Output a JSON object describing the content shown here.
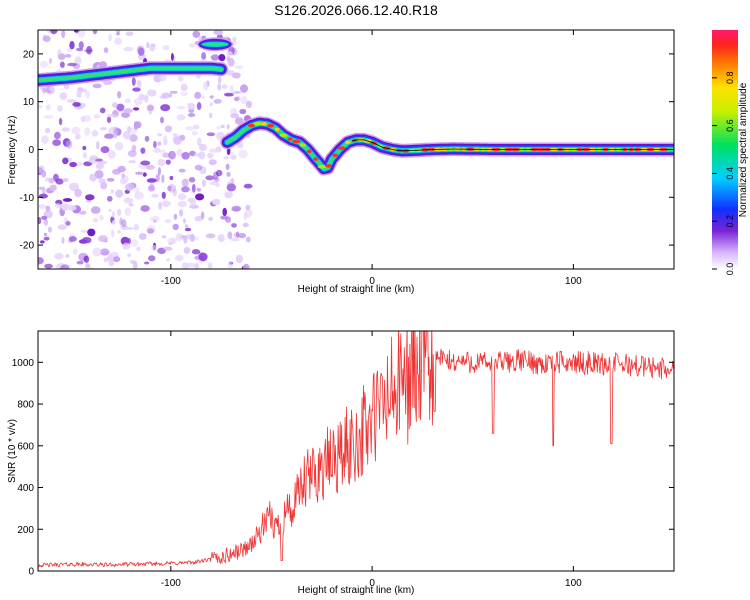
{
  "title": "S126.2026.066.12.40.R18",
  "chart_data": [
    {
      "type": "heatmap",
      "xlabel": "Height of straight line (km)",
      "ylabel": "Frequency (Hz)",
      "xlim": [
        -166,
        150
      ],
      "ylim": [
        -25,
        25
      ],
      "xticks": [
        -100,
        0,
        100
      ],
      "yticks": [
        -20,
        -10,
        0,
        10,
        20
      ],
      "colorbar": {
        "label": "Normalized spectral amplitude",
        "range": [
          0,
          1
        ],
        "ticks": [
          0.0,
          0.2,
          0.4,
          0.6,
          0.8
        ]
      },
      "ridge": {
        "x": [
          -166,
          -150,
          -140,
          -130,
          -120,
          -110,
          -100,
          -90,
          -80,
          -75,
          -72,
          -68,
          -64,
          -60,
          -56,
          -52,
          -48,
          -44,
          -40,
          -36,
          -32,
          -28,
          -24,
          -22,
          -20,
          -16,
          -12,
          -8,
          -4,
          0,
          5,
          10,
          15,
          20,
          30,
          40,
          60,
          80,
          100,
          120,
          140,
          150
        ],
        "y": [
          14.5,
          15,
          15.5,
          16,
          16.5,
          17,
          17,
          17,
          17,
          16.8,
          1.5,
          2.5,
          4,
          5,
          5.5,
          5.3,
          4.5,
          3,
          2,
          1.5,
          0,
          -2,
          -4,
          -3.8,
          -2,
          0,
          1.5,
          2,
          2,
          1.5,
          0.5,
          0,
          -0.3,
          -0.2,
          0,
          0.1,
          0,
          0,
          0,
          0,
          0,
          0
        ]
      },
      "patches": [
        {
          "x": -78,
          "y": 22
        }
      ]
    },
    {
      "type": "line",
      "xlabel": "Height of straight line (km)",
      "ylabel": "SNR (10 * v/v)",
      "xlim": [
        -166,
        150
      ],
      "ylim": [
        0,
        1150
      ],
      "xticks": [
        -100,
        0,
        100
      ],
      "yticks": [
        0,
        200,
        400,
        600,
        800,
        1000
      ],
      "series": [
        {
          "color": "#ee3333",
          "x": [
            -166,
            -150,
            -130,
            -110,
            -90,
            -80,
            -75,
            -70,
            -66,
            -62,
            -58,
            -55,
            -52,
            -50,
            -48,
            -45,
            -42,
            -40,
            -38,
            -36,
            -33,
            -30,
            -27,
            -24,
            -21,
            -18,
            -15,
            -12,
            -9,
            -6,
            -3,
            0,
            3,
            6,
            9,
            12,
            15,
            18,
            21,
            24,
            27,
            30,
            33,
            36,
            40,
            45,
            50,
            55,
            60,
            65,
            70,
            75,
            80,
            85,
            90,
            95,
            100,
            105,
            110,
            115,
            120,
            125,
            130,
            135,
            140,
            145,
            150
          ],
          "y": [
            28,
            32,
            30,
            34,
            40,
            55,
            65,
            80,
            95,
            115,
            150,
            200,
            230,
            260,
            200,
            260,
            300,
            280,
            320,
            380,
            420,
            460,
            480,
            500,
            520,
            545,
            560,
            590,
            620,
            650,
            680,
            720,
            760,
            800,
            840,
            870,
            900,
            930,
            960,
            980,
            990,
            1005,
            1020,
            1010,
            1000,
            1005,
            1000,
            995,
            1000,
            1000,
            1005,
            1010,
            1000,
            990,
            1000,
            1000,
            1000,
            995,
            1000,
            990,
            995,
            990,
            985,
            980,
            975,
            970,
            960
          ]
        }
      ],
      "dips": [
        {
          "x": -45,
          "y": 50
        },
        {
          "x": 31,
          "y": 765
        },
        {
          "x": 60,
          "y": 660
        },
        {
          "x": 90,
          "y": 600
        },
        {
          "x": 119,
          "y": 610
        }
      ]
    }
  ]
}
